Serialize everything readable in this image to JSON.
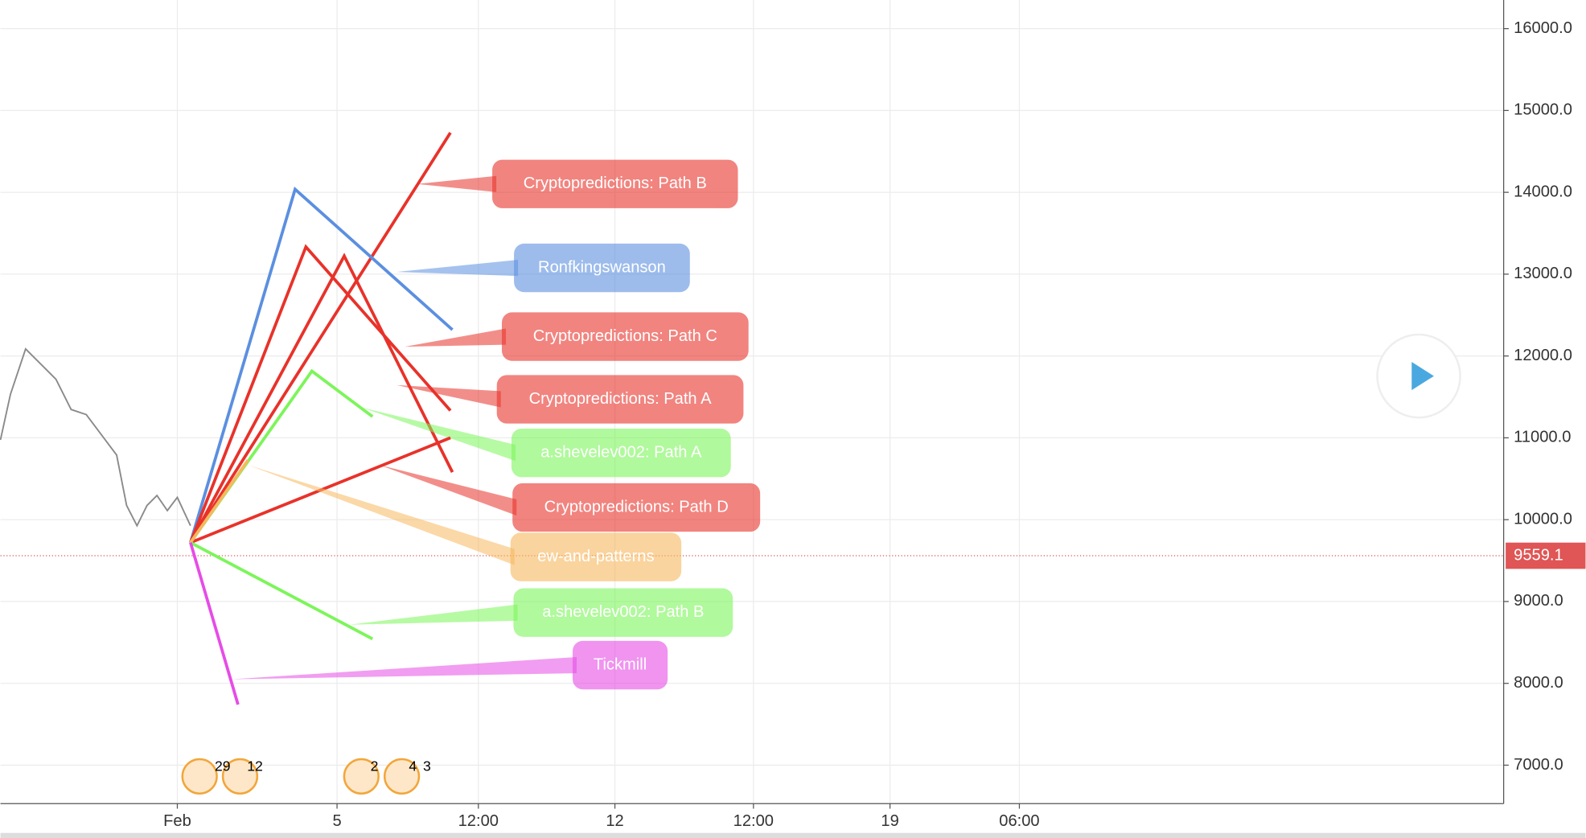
{
  "chart_data": {
    "type": "line",
    "xlim": [
      -4.43,
      33.22
    ],
    "ylim": [
      6530,
      16350
    ],
    "xticks": [
      {
        "value": 0,
        "label": "Feb"
      },
      {
        "value": 4,
        "label": "5"
      },
      {
        "value": 7.54,
        "label": "12:00"
      },
      {
        "value": 10.96,
        "label": "12"
      },
      {
        "value": 14.43,
        "label": "12:00"
      },
      {
        "value": 17.85,
        "label": "19"
      },
      {
        "value": 21.09,
        "label": "06:00"
      }
    ],
    "yticks": [
      {
        "value": 7000,
        "label": "7000.0"
      },
      {
        "value": 8000,
        "label": "8000.0"
      },
      {
        "value": 9000,
        "label": "9000.0"
      },
      {
        "value": 10000,
        "label": "10000.0"
      },
      {
        "value": 11000,
        "label": "11000.0"
      },
      {
        "value": 12000,
        "label": "12000.0"
      },
      {
        "value": 13000,
        "label": "13000.0"
      },
      {
        "value": 14000,
        "label": "14000.0"
      },
      {
        "value": 15000,
        "label": "15000.0"
      },
      {
        "value": 16000,
        "label": "16000.0"
      }
    ],
    "grid": true,
    "last_price": 9559.1,
    "price_history": {
      "color": "#8a8a8a",
      "x": [
        -4.43,
        -4.18,
        -3.8,
        -3.42,
        -3.04,
        -2.66,
        -2.28,
        -1.9,
        -1.52,
        -1.27,
        -1.01,
        -0.76,
        -0.51,
        -0.25,
        0,
        0.33
      ],
      "values": [
        10975,
        11531,
        12086,
        11901,
        11716,
        11346,
        11284,
        11037,
        10790,
        10173,
        9926,
        10173,
        10296,
        10111,
        10272,
        9926
      ]
    },
    "series": [
      {
        "name": "Cryptopredictions: Path B",
        "color": "#e8322a",
        "x": [
          0.33,
          6.84
        ],
        "values": [
          9720,
          14728
        ]
      },
      {
        "name": "Ronfkingswanson",
        "color": "#5b8fe0",
        "x": [
          0.33,
          2.95,
          6.89
        ],
        "values": [
          9720,
          14037,
          12321
        ]
      },
      {
        "name": "Cryptopredictions: Path C",
        "color": "#e8322a",
        "x": [
          0.33,
          3.22,
          6.84
        ],
        "values": [
          9720,
          13333,
          11333
        ]
      },
      {
        "name": "Cryptopredictions: Path A",
        "color": "#e8322a",
        "x": [
          0.33,
          4.18,
          6.89
        ],
        "values": [
          9720,
          13222,
          10580
        ]
      },
      {
        "name": "a.shevelev002: Path A",
        "color": "#7cf55a",
        "x": [
          0.33,
          3.37,
          4.89
        ],
        "values": [
          9720,
          11815,
          11259
        ]
      },
      {
        "name": "Cryptopredictions: Path D",
        "color": "#e8322a",
        "x": [
          0.33,
          6.84
        ],
        "values": [
          9720,
          11000
        ]
      },
      {
        "name": "ew-and-patterns",
        "color": "#f7b85e",
        "x": [
          0.33,
          1.77
        ],
        "values": [
          9720,
          10728
        ]
      },
      {
        "name": "a.shevelev002: Path B",
        "color": "#7cf55a",
        "x": [
          0.33,
          4.89
        ],
        "values": [
          9720,
          8543
        ]
      },
      {
        "name": "Tickmill",
        "color": "#e64ce6",
        "x": [
          0.33,
          1.52
        ],
        "values": [
          9720,
          7741
        ]
      }
    ],
    "event_counts": [
      "29",
      "12",
      "2",
      "4",
      "3"
    ]
  }
}
